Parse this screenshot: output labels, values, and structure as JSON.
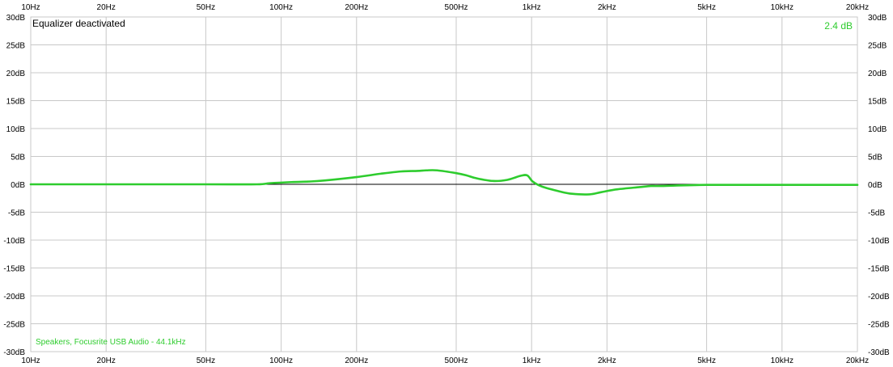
{
  "status": {
    "equalizer_state": "Equalizer deactivated",
    "current_value": "2.4 dB",
    "device": "Speakers, Focusrite USB Audio - 44.1kHz"
  },
  "colors": {
    "curve": "#2ecc2e",
    "grid": "#c8c8c8",
    "zero_line": "#000000",
    "background": "#ffffff",
    "text": "#000000",
    "green_text": "#2ecc2e"
  },
  "chart_data": {
    "type": "line",
    "title": "",
    "xlabel": "",
    "ylabel": "",
    "x_scale": "log",
    "xlim": [
      10,
      20000
    ],
    "ylim": [
      -30,
      30
    ],
    "grid": true,
    "x_ticks": [
      10,
      20,
      50,
      100,
      200,
      500,
      1000,
      2000,
      5000,
      10000,
      20000
    ],
    "x_tick_labels": [
      "10Hz",
      "20Hz",
      "50Hz",
      "100Hz",
      "200Hz",
      "500Hz",
      "1kHz",
      "2kHz",
      "5kHz",
      "10kHz",
      "20kHz"
    ],
    "y_ticks": [
      30,
      25,
      20,
      15,
      10,
      5,
      0,
      -5,
      -10,
      -15,
      -20,
      -25,
      -30
    ],
    "y_tick_labels": [
      "30dB",
      "25dB",
      "20dB",
      "15dB",
      "10dB",
      "5dB",
      "0dB",
      "-5dB",
      "-10dB",
      "-15dB",
      "-20dB",
      "-25dB",
      "-30dB"
    ],
    "series": [
      {
        "x": [
          10,
          20,
          50,
          80,
          90,
          110,
          130,
          150,
          200,
          250,
          300,
          350,
          380,
          420,
          500,
          550,
          600,
          700,
          800,
          900,
          960,
          1010,
          1100,
          1300,
          1450,
          1700,
          1900,
          2200,
          2700,
          3000,
          3300,
          5000,
          10000,
          20000
        ],
        "y": [
          0,
          0,
          0,
          0,
          0.2,
          0.4,
          0.5,
          0.7,
          1.3,
          1.9,
          2.3,
          2.4,
          2.5,
          2.5,
          2.0,
          1.6,
          1.1,
          0.6,
          0.8,
          1.5,
          1.6,
          0.5,
          -0.4,
          -1.3,
          -1.7,
          -1.8,
          -1.4,
          -0.9,
          -0.5,
          -0.3,
          -0.3,
          -0.1,
          -0.1,
          -0.1
        ]
      }
    ]
  }
}
